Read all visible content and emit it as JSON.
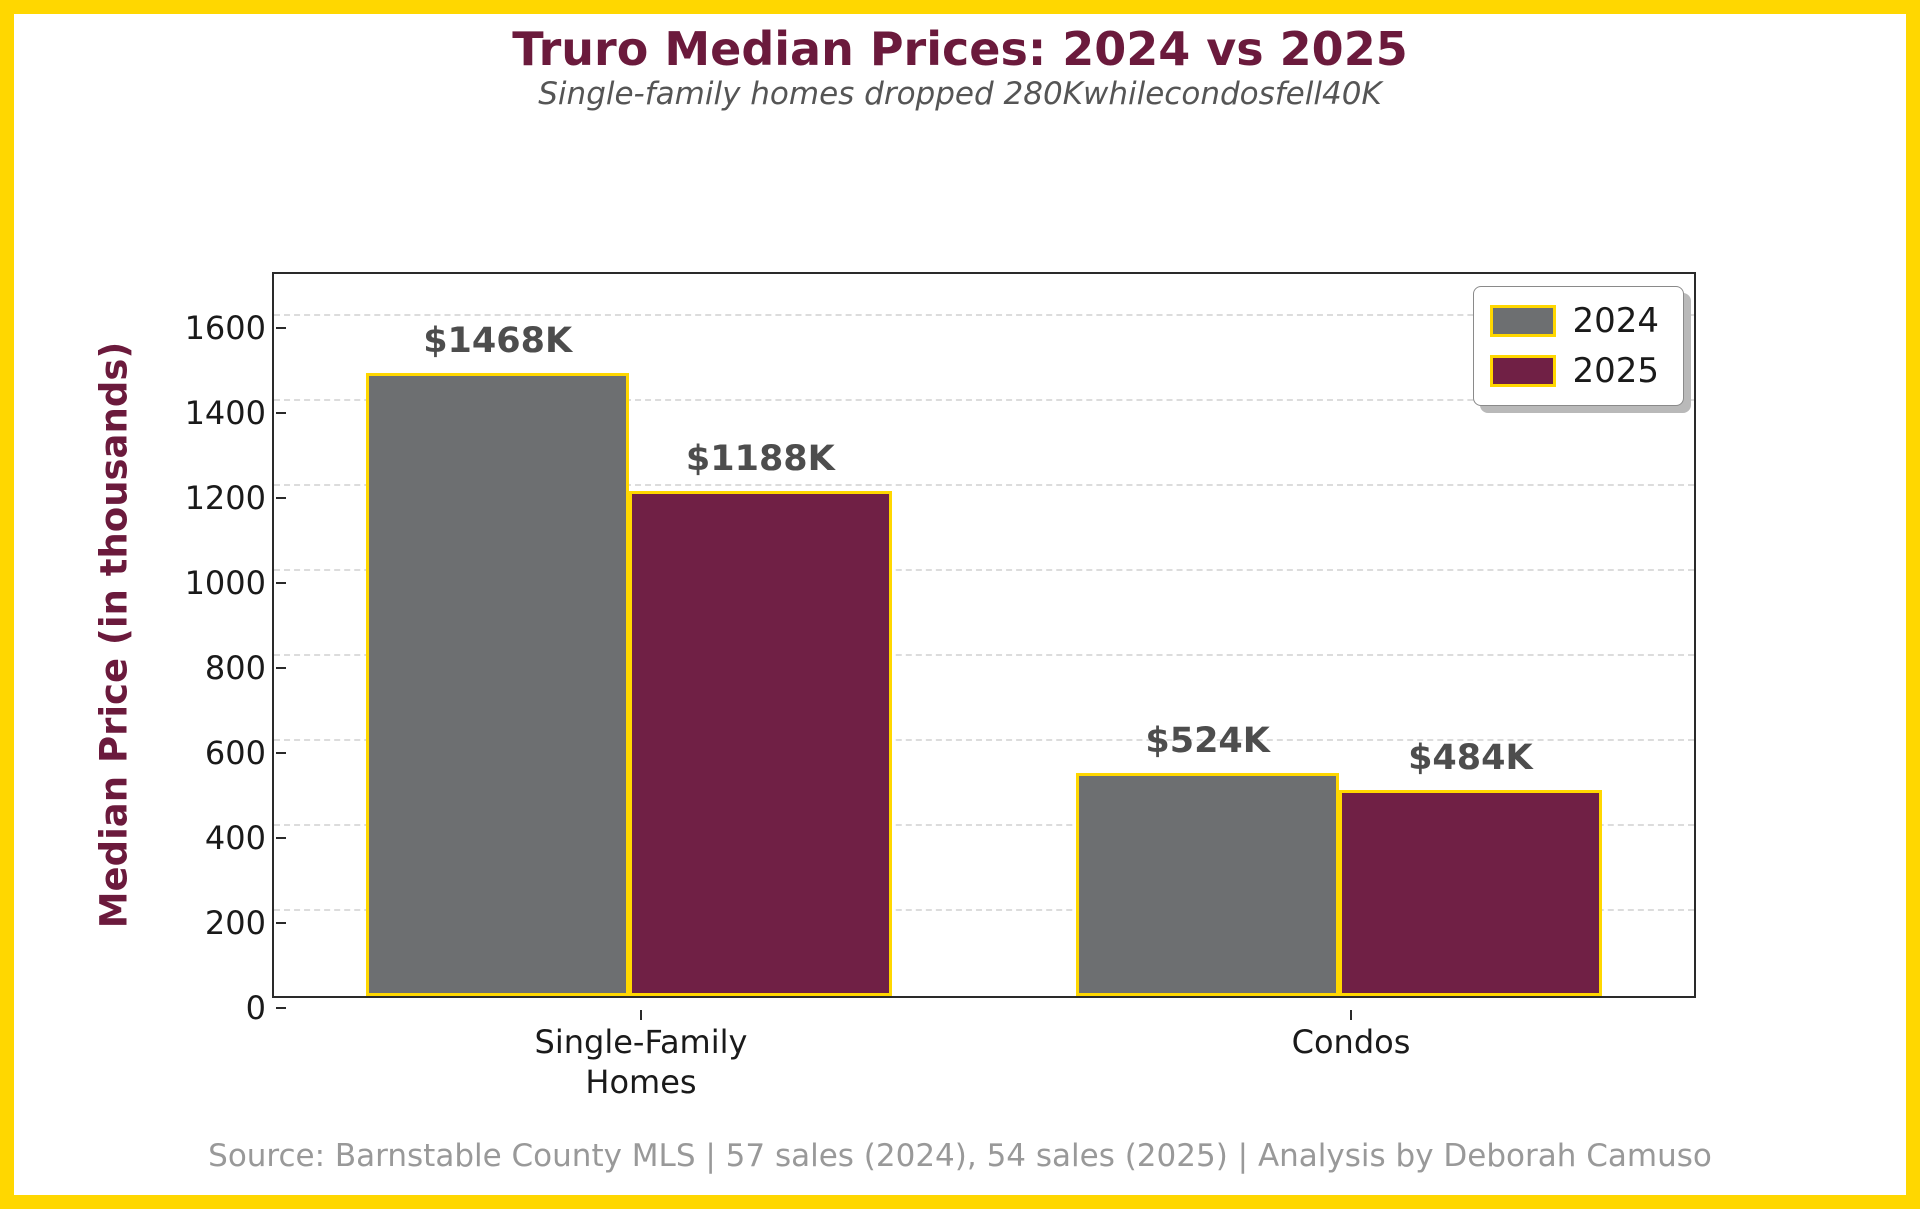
{
  "header": {
    "title": "Truro Median Prices: 2024 vs 2025",
    "subtitle": "Single-family homes dropped 280Kwhilecondosfell40K"
  },
  "footer": {
    "source_text": "Source: Barnstable County MLS | 57 sales (2024), 54 sales (2025) | Analysis by Deborah Camuso"
  },
  "colors": {
    "frame_gold": "#FFD700",
    "title_maroon": "#6B1A3C",
    "bar_2024_gray": "#6D6F71",
    "bar_2025_maroon": "#702045",
    "bar_edge_gold": "#FFD700",
    "subtitle_gray": "#555555",
    "value_label_gray": "#4d4d4d",
    "footer_gray": "#999999",
    "gridline_gray": "#dcdcdc"
  },
  "chart_data": {
    "type": "bar",
    "title": "Truro Median Prices: 2024 vs 2025",
    "subtitle": "Single-family homes dropped 280Kwhilecondosfell40K",
    "categories": [
      "Single-Family\nHomes",
      "Condos"
    ],
    "series": [
      {
        "name": "2024",
        "values": [
          1468,
          524
        ],
        "labels": [
          "$1468K",
          "$524K"
        ],
        "color": "#6D6F71",
        "edge_color": "#FFD700"
      },
      {
        "name": "2025",
        "values": [
          1188,
          484
        ],
        "labels": [
          "$1188K",
          "$484K"
        ],
        "color": "#702045",
        "edge_color": "#FFD700"
      }
    ],
    "ylabel": "Median Price (in thousands)",
    "ylim": [
      0,
      1700
    ],
    "yticks": [
      0,
      200,
      400,
      600,
      800,
      1000,
      1200,
      1400,
      1600
    ],
    "grid": "horizontal-dashed",
    "legend_position": "upper-right",
    "bar_width_fraction": 0.185
  }
}
